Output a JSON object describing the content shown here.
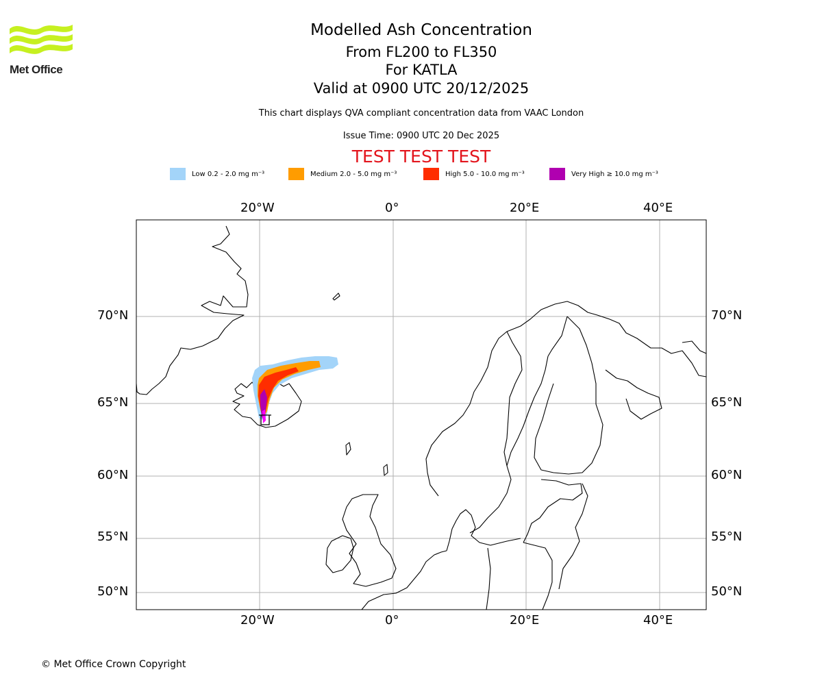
{
  "brand": {
    "name": "Met Office",
    "logo_color": "#c6f020"
  },
  "title": {
    "main": "Modelled Ash Concentration",
    "levels": "From FL200 to FL350",
    "volcano": "For KATLA",
    "valid": "Valid at 0900 UTC 20/12/2025"
  },
  "subtitle": "This chart displays QVA compliant concentration data from VAAC London",
  "issue_time": "Issue Time: 0900 UTC 20 Dec 2025",
  "test_banner": {
    "text": "TEST TEST TEST",
    "color": "#e3141c"
  },
  "legend": [
    {
      "label": "Low 0.2 - 2.0 mg m⁻³",
      "color": "#a3d4f9"
    },
    {
      "label": "Medium 2.0 - 5.0 mg m⁻³",
      "color": "#ff9c00"
    },
    {
      "label": "High 5.0 - 10.0 mg m⁻³",
      "color": "#ff2d00"
    },
    {
      "label": "Very High ≥ 10.0 mg m⁻³",
      "color": "#b000b0"
    }
  ],
  "map": {
    "longitude_ticks": [
      "20°W",
      "0°",
      "20°E",
      "40°E"
    ],
    "latitude_ticks": [
      "70°N",
      "65°N",
      "60°N",
      "55°N",
      "50°N"
    ],
    "grid": true,
    "gridline_color": "#b0b0b0"
  },
  "copyright": "© Met Office Crown Copyright"
}
